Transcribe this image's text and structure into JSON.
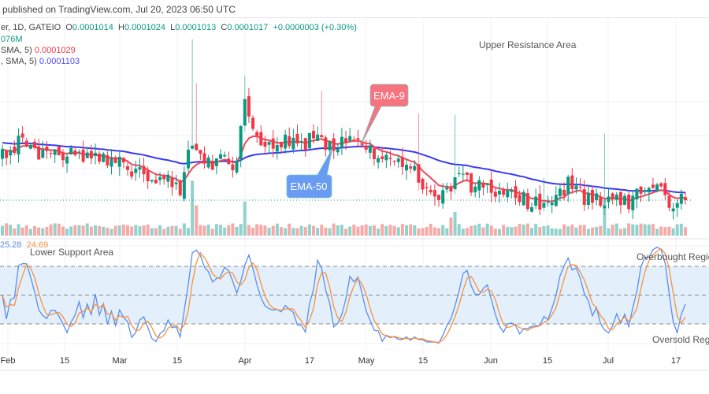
{
  "header": {
    "published": "published on TradingView.com, Jul 20, 2023 06:50 UTC"
  },
  "legend": {
    "symbol": "er, 1D, GATEIO",
    "open_label": "O",
    "open": "0.0001014",
    "high_label": "H",
    "high": "0.0001024",
    "low_label": "L",
    "low": "0.0001013",
    "close_label": "C",
    "close": "0.0001017",
    "change": "+0.0000003 (+0.30%)",
    "volume": "076M",
    "ema9_label": "SMA, 5)",
    "ema9_value": "0.0001029",
    "ema50_label": ", SMA, 5)",
    "ema50_value": "0.0001103"
  },
  "annotations": {
    "upper": "Upper Resistance Area",
    "lower": "Lower Support Area",
    "ema9": "EMA-9",
    "ema50": "EMA-50",
    "overbought": "Overbought Regio",
    "oversold": "Oversold Regio"
  },
  "oscillator": {
    "k_value": "25.28",
    "d_value": "24.69",
    "upper_band": 80,
    "middle_band": 50,
    "lower_band": 20
  },
  "colors": {
    "up": "#089981",
    "down": "#f23645",
    "vol_up": "#92d2cc",
    "vol_down": "#f7a9a7",
    "ema9": "#f0485a",
    "ema50": "#3a3af2",
    "k": "#5b8def",
    "d": "#f7913d"
  },
  "chart_data": {
    "type": "candlestick",
    "price_unit": "1e-4",
    "candle_count": 170,
    "close_anchors": [
      [
        0,
        1.56
      ],
      [
        3,
        1.53
      ],
      [
        4,
        1.84
      ],
      [
        7,
        1.66
      ],
      [
        19,
        1.56
      ],
      [
        29,
        1.46
      ],
      [
        38,
        1.31
      ],
      [
        44,
        1.16
      ],
      [
        46,
        1.56
      ],
      [
        48,
        1.73
      ],
      [
        50,
        1.51
      ],
      [
        58,
        1.48
      ],
      [
        60,
        2.31
      ],
      [
        62,
        1.86
      ],
      [
        66,
        1.76
      ],
      [
        77,
        1.76
      ],
      [
        85,
        1.74
      ],
      [
        89,
        1.71
      ],
      [
        95,
        1.56
      ],
      [
        101,
        1.46
      ],
      [
        107,
        1.06
      ],
      [
        111,
        1.11
      ],
      [
        112,
        1.28
      ],
      [
        120,
        1.16
      ],
      [
        130,
        1.01
      ],
      [
        134,
        0.94
      ],
      [
        141,
        1.26
      ],
      [
        144,
        1.06
      ],
      [
        155,
        1.01
      ],
      [
        162,
        1.16
      ],
      [
        165,
        0.98
      ],
      [
        169,
        1.017
      ]
    ],
    "high_wicks": [
      [
        47,
        3.06
      ],
      [
        48,
        2.5
      ],
      [
        60,
        2.6
      ],
      [
        79,
        2.4
      ],
      [
        103,
        2.12
      ],
      [
        112,
        2.1
      ],
      [
        149,
        1.86
      ],
      [
        134,
        1.3
      ]
    ],
    "volume_base": 1.0,
    "volume_spikes": [
      [
        47,
        5.8
      ],
      [
        48,
        3.2
      ],
      [
        60,
        3.6
      ],
      [
        112,
        2.5
      ],
      [
        149,
        3.8
      ],
      [
        111,
        1.9
      ]
    ],
    "current_price": 1.017,
    "ema50_seed": 1.75,
    "x_tick_labels": [
      "Feb",
      "15",
      "Mar",
      "15",
      "Apr",
      "17",
      "May",
      "15",
      "Jun",
      "15",
      "Jul",
      "17"
    ]
  }
}
